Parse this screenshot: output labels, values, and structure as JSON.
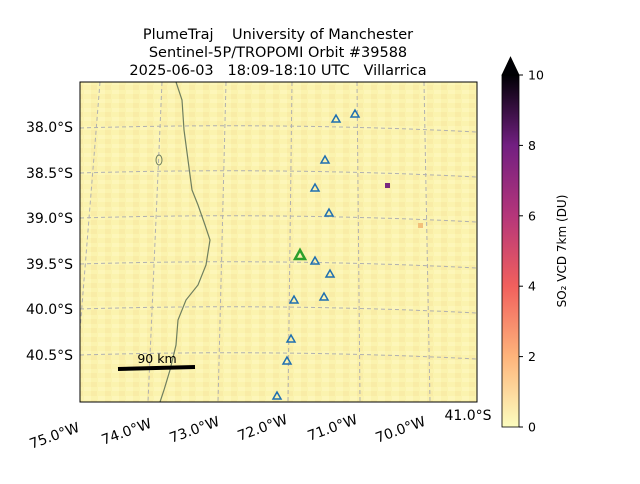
{
  "header": {
    "lines": [
      "PlumeTraj    University of Manchester",
      "Sentinel-5P/TROPOMI Orbit #39588",
      "2025-06-03   18:09-18:10 UTC   Villarrica"
    ]
  },
  "map": {
    "lat_labels": [
      "38.0°S",
      "38.5°S",
      "39.0°S",
      "39.5°S",
      "40.0°S",
      "40.5°S"
    ],
    "lon_labels": [
      "75.0°W",
      "74.0°W",
      "73.0°W",
      "72.0°W",
      "71.0°W",
      "70.0°W"
    ],
    "corner_label": "41.0°S",
    "scale_bar": "90 km"
  },
  "colorbar": {
    "label": "SO₂ VCD 7km (DU)",
    "lim": [
      0,
      10
    ],
    "ticks": [
      0,
      2,
      4,
      6,
      8,
      10
    ]
  }
}
